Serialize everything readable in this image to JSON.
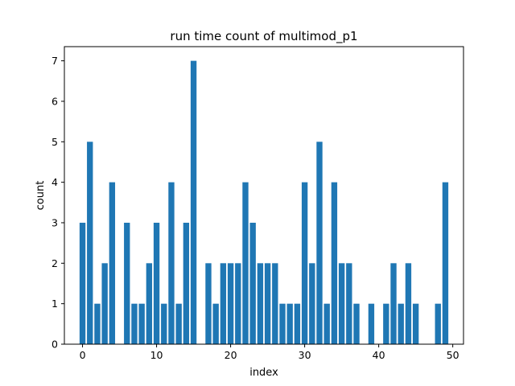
{
  "chart_data": {
    "type": "bar",
    "title": "run time count of multimod_p1",
    "xlabel": "index",
    "ylabel": "count",
    "xlim": [
      -2.45,
      51.45
    ],
    "ylim": [
      0,
      7.35
    ],
    "xticks": [
      0,
      10,
      20,
      30,
      40,
      50
    ],
    "yticks": [
      0,
      1,
      2,
      3,
      4,
      5,
      6,
      7
    ],
    "bar_color": "#1f77b4",
    "grid": false,
    "x": [
      0,
      1,
      2,
      3,
      4,
      5,
      6,
      7,
      8,
      9,
      10,
      11,
      12,
      13,
      14,
      15,
      16,
      17,
      18,
      19,
      20,
      21,
      22,
      23,
      24,
      25,
      26,
      27,
      28,
      29,
      30,
      31,
      32,
      33,
      34,
      35,
      36,
      37,
      38,
      39,
      40,
      41,
      42,
      43,
      44,
      45,
      46,
      47,
      48,
      49
    ],
    "values": [
      3,
      5,
      1,
      2,
      4,
      0,
      3,
      1,
      1,
      2,
      3,
      1,
      4,
      1,
      3,
      7,
      0,
      2,
      1,
      2,
      2,
      2,
      4,
      3,
      2,
      2,
      2,
      1,
      1,
      1,
      4,
      2,
      5,
      1,
      4,
      2,
      2,
      1,
      0,
      1,
      0,
      1,
      2,
      1,
      2,
      1,
      0,
      0,
      1,
      4
    ]
  }
}
